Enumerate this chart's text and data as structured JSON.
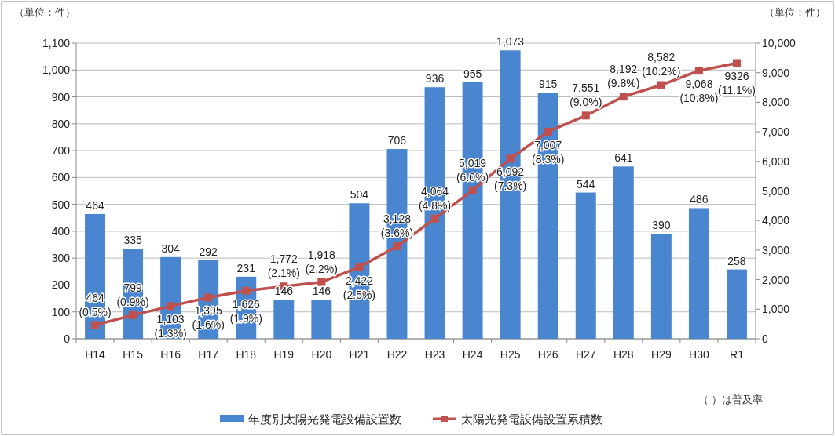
{
  "chart_data": {
    "type": "bar",
    "ylabel": "（単位：件）",
    "y2label": "（単位：件）",
    "categories": [
      "H14",
      "H15",
      "H16",
      "H17",
      "H18",
      "H19",
      "H20",
      "H21",
      "H22",
      "H23",
      "H24",
      "H25",
      "H26",
      "H27",
      "H28",
      "H29",
      "H30",
      "R1"
    ],
    "series": [
      {
        "name": "年度別太陽光発電設備設置数",
        "type": "bar",
        "color": "#4a86d0",
        "values": [
          464,
          335,
          304,
          292,
          231,
          146,
          146,
          504,
          706,
          936,
          955,
          1073,
          915,
          544,
          641,
          390,
          486,
          258
        ],
        "value_labels": [
          "464",
          "335",
          "304",
          "292",
          "231",
          "146",
          "146",
          "504",
          "706",
          "936",
          "955",
          "1,073",
          "915",
          "544",
          "641",
          "390",
          "486",
          "258"
        ]
      },
      {
        "name": "太陽光発電設備設置累積数",
        "type": "line",
        "axis": "y2",
        "color": "#c0504d",
        "marker": "square",
        "values": [
          464,
          799,
          1103,
          1395,
          1626,
          1772,
          1918,
          2422,
          3128,
          4064,
          5019,
          6092,
          7007,
          7551,
          8192,
          8582,
          9068,
          9326
        ],
        "value_labels": [
          "464 (0.5%)",
          "799 (0.9%)",
          "1,103 (1.3%)",
          "1,395 (1.6%)",
          "1,626 (1.9%)",
          "1,772 (2.1%)",
          "1,918 (2.2%)",
          "2,422 (2.5%)",
          "3,128 (3.6%)",
          "4,064 (4.8%)",
          "5,019 (6.0%)",
          "6,092 (7.3%)",
          "7,007 (8.3%)",
          "7,551 (9.0%)",
          "8,192 (9.8%)",
          "8,582 (10.2%)",
          "9,068 (10.8%)",
          "9326 (11.1%)"
        ]
      }
    ],
    "ylim": [
      0,
      1100
    ],
    "yticks": [
      0,
      {
        "value": 100,
        "label": "100"
      },
      {
        "value": 200,
        "label": "200"
      },
      {
        "value": 300,
        "label": "300"
      },
      {
        "value": 400,
        "label": "400"
      },
      {
        "value": 500,
        "label": "500"
      },
      {
        "value": 600,
        "label": "600"
      },
      {
        "value": 700,
        "label": "700"
      },
      {
        "value": 800,
        "label": "800"
      },
      {
        "value": 900,
        "label": "900"
      },
      {
        "value": 1000,
        "label": "1,000"
      },
      {
        "value": 1100,
        "label": "1,100"
      }
    ],
    "y2lim": [
      0,
      10000
    ],
    "y2ticks": [
      0,
      {
        "value": 1000,
        "label": "1,000"
      },
      {
        "value": 2000,
        "label": "2,000"
      },
      {
        "value": 3000,
        "label": "3,000"
      },
      {
        "value": 4000,
        "label": "4,000"
      },
      {
        "value": 5000,
        "label": "5,000"
      },
      {
        "value": 6000,
        "label": "6,000"
      },
      {
        "value": 7000,
        "label": "7,000"
      },
      {
        "value": 8000,
        "label": "8,000"
      },
      {
        "value": 9000,
        "label": "9,000"
      },
      {
        "value": 10000,
        "label": "10,000"
      }
    ],
    "grid": "y",
    "legend": "bottom",
    "annotations": [
      "（ ）は普及率"
    ]
  }
}
